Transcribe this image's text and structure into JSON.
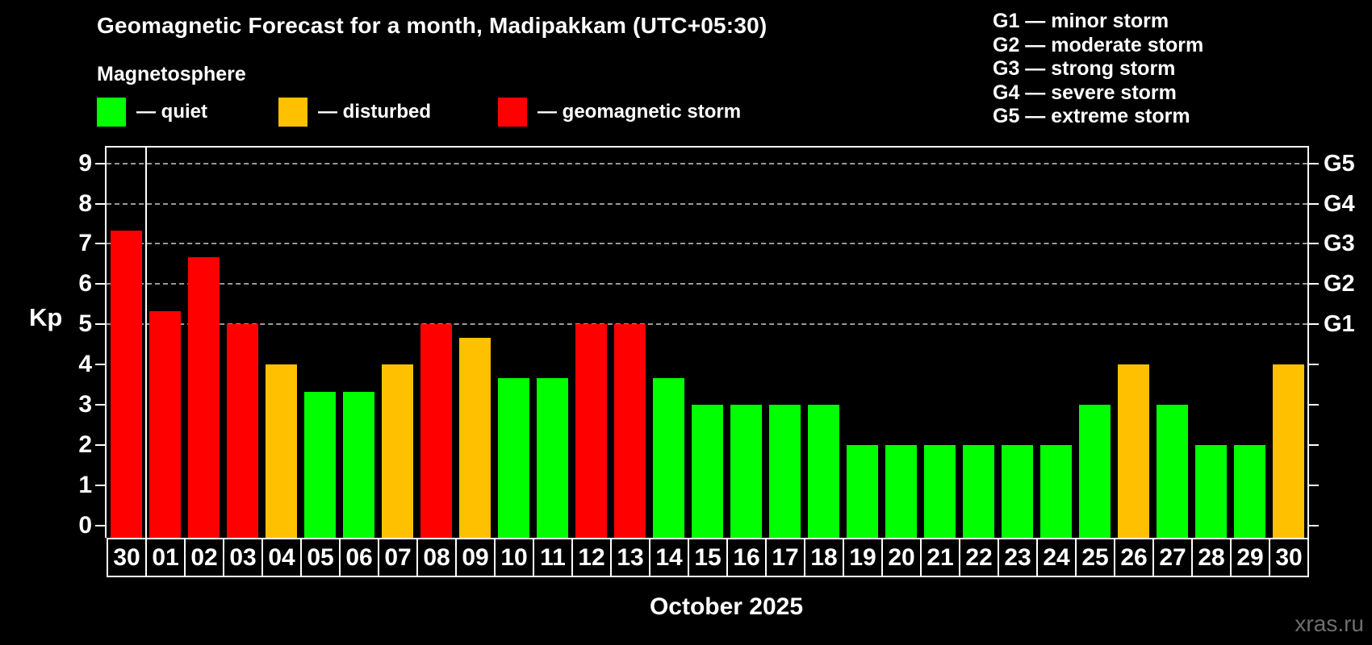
{
  "title": "Geomagnetic Forecast for a month, Madipakkam (UTC+05:30)",
  "subtitle": "Magnetosphere",
  "legend": {
    "items": [
      {
        "key": "quiet",
        "label": "— quiet",
        "color": "#00ff00"
      },
      {
        "key": "disturbed",
        "label": "— disturbed",
        "color": "#ffc000"
      },
      {
        "key": "storm",
        "label": "— geomagnetic storm",
        "color": "#ff0000"
      }
    ]
  },
  "storm_scale_legend": [
    "G1 — minor storm",
    "G2 — moderate storm",
    "G3 — strong storm",
    "G4 — severe storm",
    "G5 — extreme storm"
  ],
  "y_axis": {
    "label": "Kp",
    "ticks": [
      "0",
      "1",
      "2",
      "3",
      "4",
      "5",
      "6",
      "7",
      "8",
      "9"
    ],
    "min": 0,
    "max": 9
  },
  "right_axis": {
    "labels": [
      {
        "text": "G1",
        "kp": 5
      },
      {
        "text": "G2",
        "kp": 6
      },
      {
        "text": "G3",
        "kp": 7
      },
      {
        "text": "G4",
        "kp": 8
      },
      {
        "text": "G5",
        "kp": 9
      }
    ]
  },
  "month_label": "October 2025",
  "watermark": "xras.ru",
  "colors": {
    "quiet": "#00ff00",
    "disturbed": "#ffc000",
    "storm": "#ff0000",
    "gridline": "#999999",
    "axis": "#ffffff",
    "background": "#000000"
  },
  "chart_data": {
    "type": "bar",
    "title": "Geomagnetic Forecast for a month, Madipakkam (UTC+05:30)",
    "subtitle": "Magnetosphere",
    "xlabel": "October 2025",
    "ylabel": "Kp",
    "ylim": [
      0,
      9
    ],
    "gridlines_at_kp": [
      5,
      6,
      7,
      8,
      9
    ],
    "grid_style": "dashed",
    "legend_position": "top-left",
    "separator_after_index": 0,
    "categories": [
      "30",
      "01",
      "02",
      "03",
      "04",
      "05",
      "06",
      "07",
      "08",
      "09",
      "10",
      "11",
      "12",
      "13",
      "14",
      "15",
      "16",
      "17",
      "18",
      "19",
      "20",
      "21",
      "22",
      "23",
      "24",
      "25",
      "26",
      "27",
      "28",
      "29",
      "30"
    ],
    "values": [
      7.33,
      5.33,
      6.67,
      5,
      4,
      3.33,
      3.33,
      4,
      5,
      4.67,
      3.67,
      3.67,
      5,
      5,
      3.67,
      3,
      3,
      3,
      3,
      2,
      2,
      2,
      2,
      2,
      2,
      3,
      4,
      3,
      2,
      2,
      4
    ],
    "statuses": [
      "storm",
      "storm",
      "storm",
      "storm",
      "disturbed",
      "quiet",
      "quiet",
      "disturbed",
      "storm",
      "disturbed",
      "quiet",
      "quiet",
      "storm",
      "storm",
      "quiet",
      "quiet",
      "quiet",
      "quiet",
      "quiet",
      "quiet",
      "quiet",
      "quiet",
      "quiet",
      "quiet",
      "quiet",
      "quiet",
      "disturbed",
      "quiet",
      "quiet",
      "quiet",
      "disturbed"
    ]
  }
}
